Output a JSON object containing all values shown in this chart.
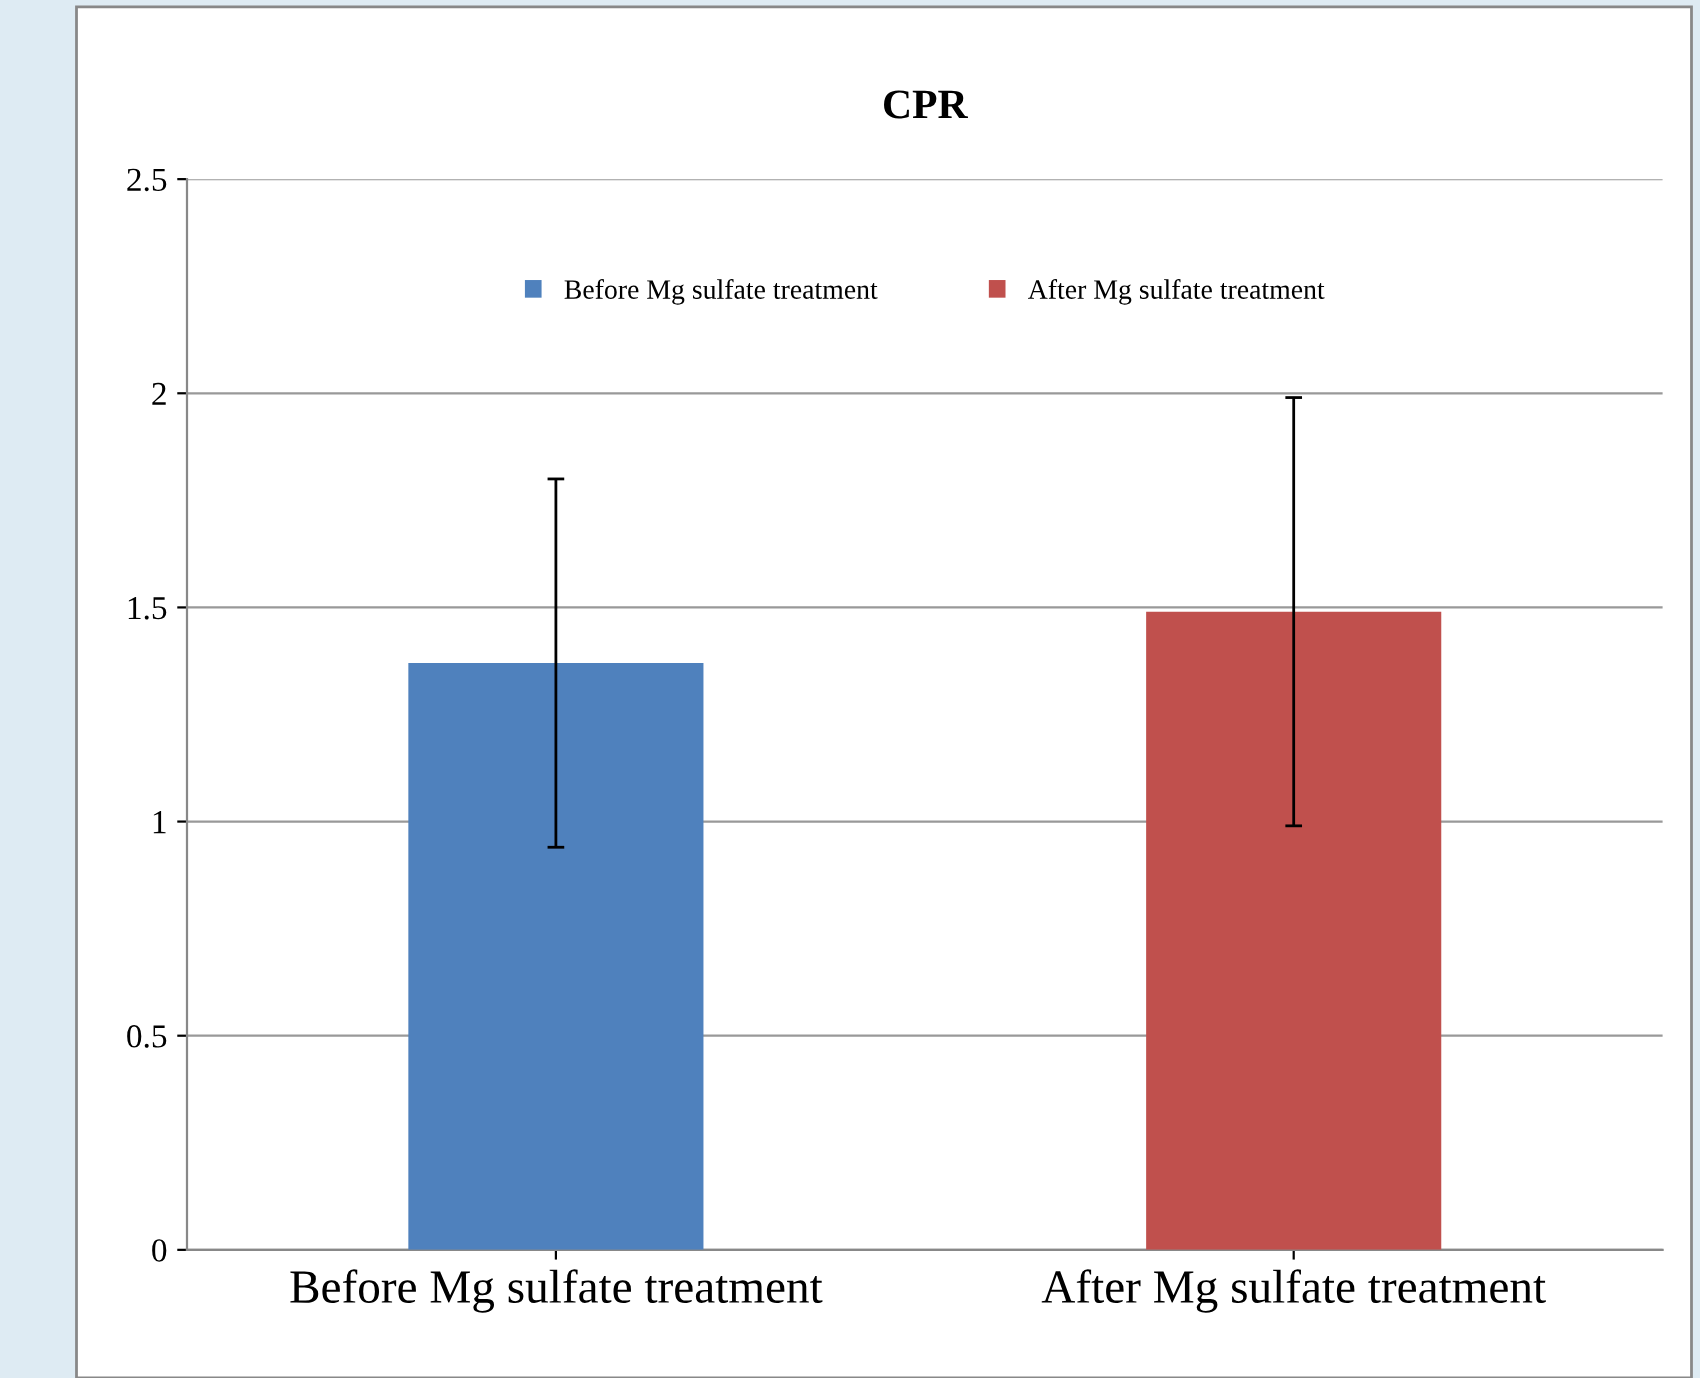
{
  "chart_data": {
    "type": "bar",
    "title": "CPR",
    "categories": [
      "Before Mg sulfate treatment",
      "After Mg sulfate treatment"
    ],
    "series": [
      {
        "name": "Before Mg sulfate treatment",
        "color": "#4f81bd",
        "values": [
          1.37,
          null
        ],
        "errors": [
          0.43,
          null
        ]
      },
      {
        "name": "After Mg sulfate treatment",
        "color": "#c0504d",
        "values": [
          null,
          1.49
        ],
        "errors": [
          null,
          0.5
        ]
      }
    ],
    "ylim": [
      0,
      2.5
    ],
    "yticks": [
      0,
      0.5,
      1,
      1.5,
      2,
      2.5
    ],
    "grid": "y",
    "legend": "top"
  }
}
